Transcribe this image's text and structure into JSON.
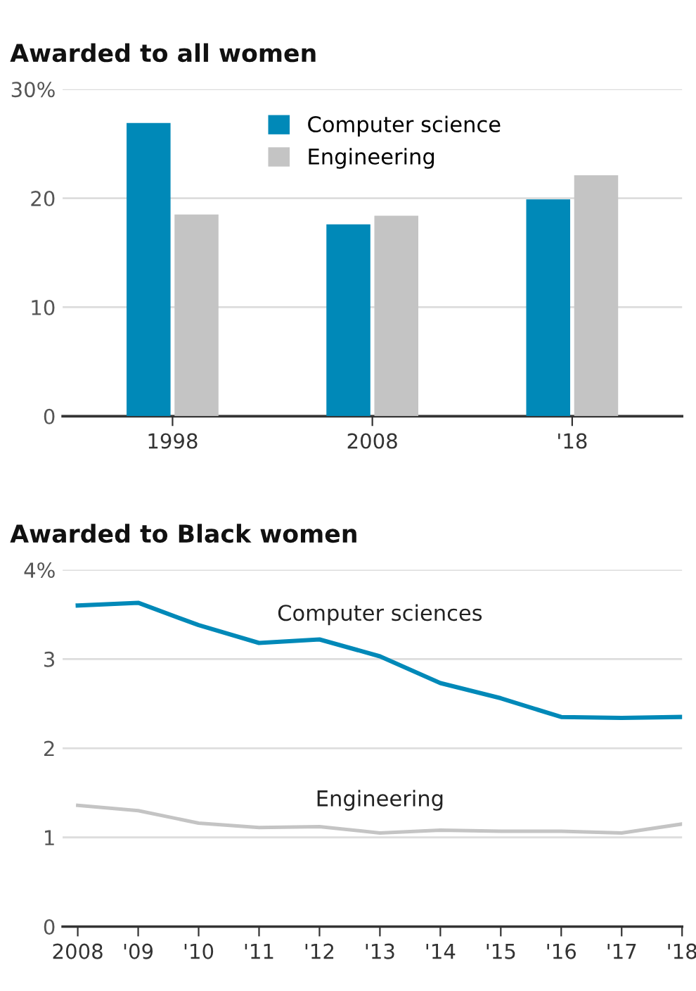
{
  "chart_data": [
    {
      "type": "bar",
      "title": "Awarded to all women",
      "categories": [
        "1998",
        "2008",
        "'18"
      ],
      "series": [
        {
          "name": "Computer science",
          "color": "#0089b8",
          "values": [
            26.9,
            17.6,
            19.9
          ]
        },
        {
          "name": "Engineering",
          "color": "#c4c4c4",
          "values": [
            18.5,
            18.4,
            22.1
          ]
        }
      ],
      "ylim": [
        0,
        30
      ],
      "yticks": [
        0,
        10,
        20,
        {
          "value": 30,
          "label": "30%"
        }
      ],
      "grid": "y",
      "legend": "top"
    },
    {
      "type": "line",
      "title": "Awarded to Black women",
      "categories": [
        "2008",
        "'09",
        "'10",
        "'11",
        "'12",
        "'13",
        "'14",
        "'15",
        "'16",
        "'17",
        "'18"
      ],
      "series": [
        {
          "name": "Computer sciences",
          "color": "#0089b8",
          "values": [
            3.6,
            3.63,
            3.38,
            3.18,
            3.22,
            3.03,
            2.73,
            2.56,
            2.35,
            2.34,
            2.35
          ]
        },
        {
          "name": "Engineering",
          "color": "#c4c4c4",
          "values": [
            1.36,
            1.3,
            1.16,
            1.11,
            1.12,
            1.05,
            1.08,
            1.07,
            1.07,
            1.05,
            1.15
          ]
        }
      ],
      "ylim": [
        0,
        4
      ],
      "yticks": [
        0,
        1,
        2,
        3,
        {
          "value": 4,
          "label": "4%"
        }
      ],
      "grid": "y",
      "legend": false,
      "marker": "none",
      "line_style": "solid"
    }
  ]
}
